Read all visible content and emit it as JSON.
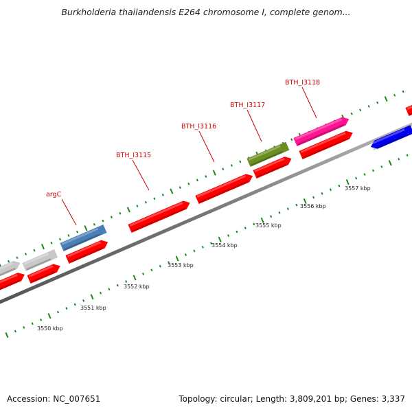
{
  "title": "Burkholderia thailandensis E264 chromosome I, complete genom...",
  "footer": {
    "accession": "Accession: NC_007651",
    "info": "Topology: circular; Length: 3,809,201 bp; Genes: 3,337"
  },
  "scale_labels": [
    "3550 kbp",
    "3551 kbp",
    "3552 kbp",
    "3553 kbp",
    "3554 kbp",
    "3555 kbp",
    "3556 kbp",
    "3557 kbp"
  ],
  "gene_labels": [
    "argC",
    "BTH_I3115",
    "BTH_I3116",
    "BTH_I3117",
    "BTH_I3118"
  ],
  "colors": {
    "backbone": "#888888",
    "tick": "#1a8a1a",
    "gene_red": "#ff0000",
    "gene_gray": "#c8c8c8",
    "gene_steelblue": "#4a7fb5",
    "gene_olive": "#6b8e23",
    "gene_pink": "#ff1493",
    "gene_blue": "#0000ee",
    "label": "#cc0000"
  }
}
